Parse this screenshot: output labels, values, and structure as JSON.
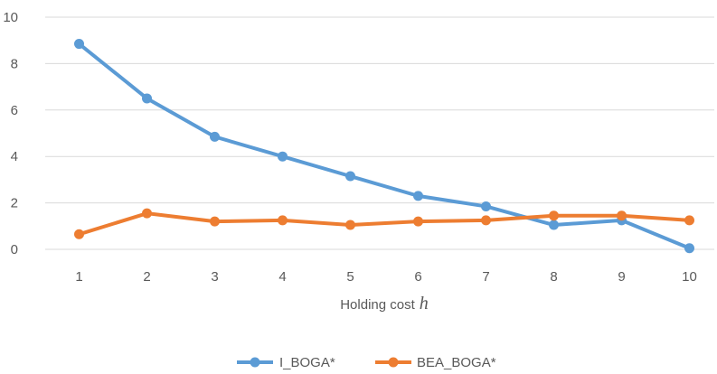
{
  "chart_data": {
    "type": "line",
    "x": [
      1,
      2,
      3,
      4,
      5,
      6,
      7,
      8,
      9,
      10
    ],
    "xlabel": "Holding cost",
    "xlabel_variable": "h",
    "ylabel": "",
    "ylim": [
      0,
      10
    ],
    "yticks": [
      0,
      2,
      4,
      6,
      8,
      10
    ],
    "grid": true,
    "legend": "bottom-center",
    "series": [
      {
        "name": "I_BOGA*",
        "color": "#5b9bd5",
        "values": [
          8.85,
          6.5,
          4.85,
          4.0,
          3.15,
          2.3,
          1.85,
          1.05,
          1.25,
          0.05
        ]
      },
      {
        "name": "BEA_BOGA*",
        "color": "#ed7d31",
        "values": [
          0.65,
          1.55,
          1.2,
          1.25,
          1.05,
          1.2,
          1.25,
          1.45,
          1.45,
          1.25
        ]
      }
    ]
  }
}
